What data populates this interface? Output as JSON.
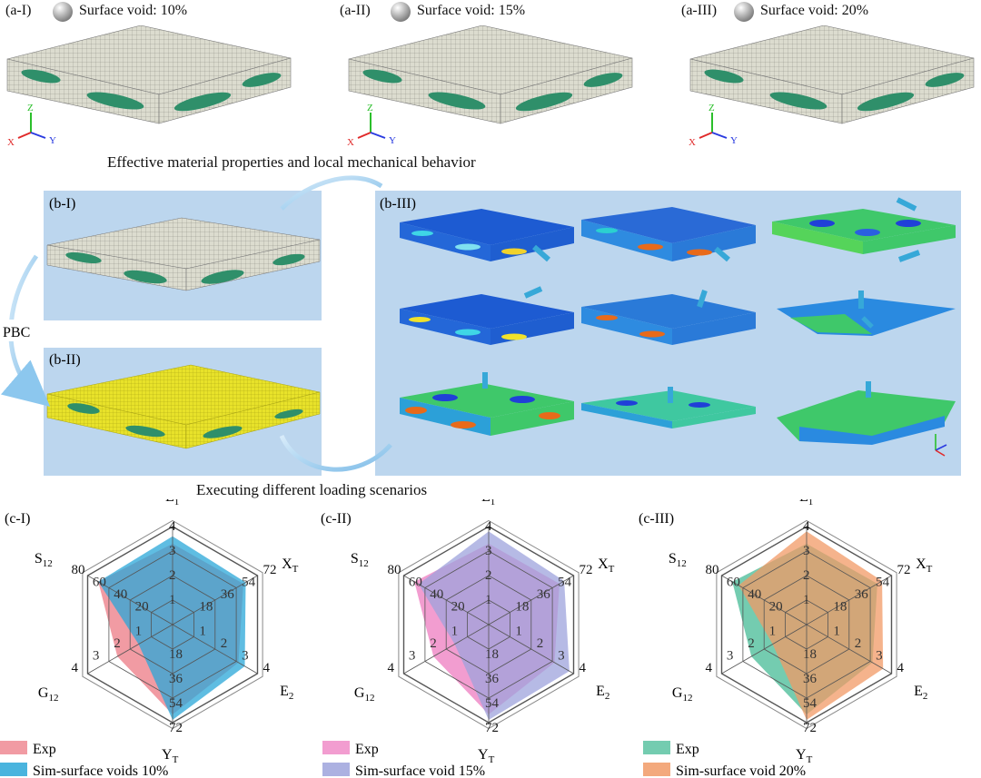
{
  "row_a": [
    {
      "label": "(a-I)",
      "void": "Surface void: 10%"
    },
    {
      "label": "(a-II)",
      "void": "Surface void: 15%"
    },
    {
      "label": "(a-III)",
      "void": "Surface void: 20%"
    }
  ],
  "caption_top": "Effective material properties and local mechanical behavior",
  "caption_mid": "Executing different loading scenarios",
  "pbc": "PBC",
  "b_labels": {
    "b1": "(b-I)",
    "b2": "(b-II)",
    "b3": "(b-III)"
  },
  "axes": {
    "x": "X",
    "y": "Y",
    "z": "Z"
  },
  "colors": {
    "mesh": "#d8d8cc",
    "void": "#2f8f6a",
    "panel_bg": "#bcd6ee",
    "exp_1": "#ee8a93",
    "sim_1": "#2aa7d8",
    "exp_2": "#f08cc8",
    "sim_2": "#9ea3dc",
    "exp_3": "#5cc3a2",
    "sim_3": "#f19a66"
  },
  "chart_data": [
    {
      "type": "radar",
      "label": "(c-I)",
      "axes": [
        {
          "name": "E",
          "sub": "1",
          "ticks": [
            "1",
            "2",
            "3",
            "4"
          ]
        },
        {
          "name": "X",
          "sub": "T",
          "ticks": [
            "18",
            "36",
            "54",
            "72"
          ]
        },
        {
          "name": "E",
          "sub": "2",
          "ticks": [
            "1",
            "2",
            "3",
            "4"
          ]
        },
        {
          "name": "Y",
          "sub": "T",
          "ticks": [
            "18",
            "36",
            "54",
            "72"
          ]
        },
        {
          "name": "G",
          "sub": "12",
          "ticks": [
            "1",
            "2",
            "3",
            "4"
          ]
        },
        {
          "name": "S",
          "sub": "12",
          "ticks": [
            "20",
            "40",
            "60",
            "80"
          ]
        }
      ],
      "series": [
        {
          "name": "Exp",
          "values": [
            3.3,
            60,
            3.1,
            66,
            2.6,
            70
          ]
        },
        {
          "name": "Sim-surface voids 10%",
          "values": [
            3.6,
            62,
            3.4,
            70,
            1.6,
            70
          ]
        }
      ]
    },
    {
      "type": "radar",
      "label": "(c-II)",
      "axes": [
        {
          "name": "E",
          "sub": "1",
          "ticks": [
            "1",
            "2",
            "3",
            "4"
          ]
        },
        {
          "name": "X",
          "sub": "T",
          "ticks": [
            "18",
            "36",
            "54",
            "72"
          ]
        },
        {
          "name": "E",
          "sub": "2",
          "ticks": [
            "1",
            "2",
            "3",
            "4"
          ]
        },
        {
          "name": "Y",
          "sub": "T",
          "ticks": [
            "18",
            "36",
            "54",
            "72"
          ]
        },
        {
          "name": "G",
          "sub": "12",
          "ticks": [
            "1",
            "2",
            "3",
            "4"
          ]
        },
        {
          "name": "S",
          "sub": "12",
          "ticks": [
            "20",
            "40",
            "60",
            "80"
          ]
        }
      ],
      "series": [
        {
          "name": "Exp",
          "values": [
            3.3,
            60,
            3.1,
            66,
            2.6,
            70
          ]
        },
        {
          "name": "Sim-surface void 15%",
          "values": [
            3.8,
            64,
            3.8,
            70,
            1.6,
            66
          ]
        }
      ]
    },
    {
      "type": "radar",
      "label": "(c-III)",
      "axes": [
        {
          "name": "E",
          "sub": "1",
          "ticks": [
            "1",
            "2",
            "3",
            "4"
          ]
        },
        {
          "name": "X",
          "sub": "T",
          "ticks": [
            "18",
            "36",
            "54",
            "72"
          ]
        },
        {
          "name": "E",
          "sub": "2",
          "ticks": [
            "1",
            "2",
            "3",
            "4"
          ]
        },
        {
          "name": "Y",
          "sub": "T",
          "ticks": [
            "18",
            "36",
            "54",
            "72"
          ]
        },
        {
          "name": "G",
          "sub": "12",
          "ticks": [
            "1",
            "2",
            "3",
            "4"
          ]
        },
        {
          "name": "S",
          "sub": "12",
          "ticks": [
            "20",
            "40",
            "60",
            "80"
          ]
        }
      ],
      "series": [
        {
          "name": "Exp",
          "values": [
            3.3,
            60,
            3.1,
            66,
            2.6,
            70
          ]
        },
        {
          "name": "Sim-surface void 20%",
          "values": [
            3.8,
            64,
            3.6,
            70,
            1.6,
            64
          ]
        }
      ]
    }
  ]
}
